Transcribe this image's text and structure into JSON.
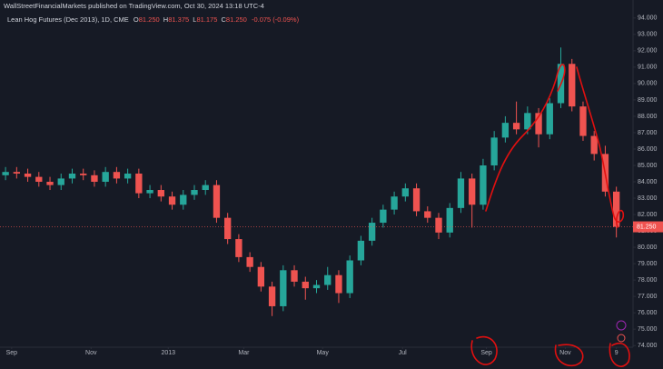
{
  "header": {
    "publisher": "WallStreetFinancialMarkets published on TradingView.com, Oct 30, 2024 13:18 UTC-4"
  },
  "chart_data": {
    "type": "candlestick",
    "title": "Lean Hog Futures (Dec 2013), 1D, CME",
    "ohlc_legend": [
      {
        "label": "O",
        "value": "81.250"
      },
      {
        "label": "H",
        "value": "81.375"
      },
      {
        "label": "L",
        "value": "81.175"
      },
      {
        "label": "C",
        "value": "81.250"
      }
    ],
    "change": "-0.075 (-0.09%)",
    "last_price_label": "81.250",
    "up_color": "#26a69a",
    "down_color": "#ef5350",
    "grid": false,
    "x": [
      0,
      2,
      4,
      6,
      8,
      10,
      12,
      14,
      16,
      18,
      20,
      22,
      24,
      26,
      28,
      30,
      32,
      34,
      36,
      38,
      40,
      42,
      44,
      46,
      48,
      50,
      52,
      54,
      56,
      58,
      60,
      62,
      64,
      66,
      68,
      70,
      72,
      74,
      76,
      78,
      80,
      82,
      84,
      86,
      88,
      90,
      92,
      94,
      96,
      98,
      100,
      102,
      104,
      106,
      108,
      110
    ],
    "open": [
      84.4,
      84.6,
      84.5,
      84.3,
      84.0,
      83.8,
      84.2,
      84.5,
      84.4,
      84.0,
      84.6,
      84.2,
      84.5,
      83.3,
      83.5,
      83.1,
      82.6,
      83.2,
      83.5,
      83.8,
      81.8,
      80.5,
      79.4,
      78.8,
      77.6,
      76.4,
      78.6,
      77.9,
      77.5,
      77.7,
      78.3,
      77.2,
      79.2,
      80.4,
      81.5,
      82.3,
      83.1,
      83.6,
      82.2,
      81.8,
      80.9,
      82.4,
      84.2,
      82.6,
      85.0,
      86.7,
      87.6,
      87.2,
      88.2,
      86.9,
      88.8,
      91.2,
      88.6,
      86.8,
      85.7,
      83.4
    ],
    "high": [
      84.9,
      84.9,
      84.8,
      84.6,
      84.3,
      84.5,
      84.8,
      84.8,
      84.7,
      84.9,
      84.9,
      84.8,
      84.8,
      83.8,
      83.8,
      83.4,
      83.5,
      83.8,
      84.1,
      84.1,
      82.1,
      80.8,
      79.7,
      79.1,
      77.9,
      78.9,
      78.9,
      78.2,
      78.0,
      78.8,
      78.6,
      79.5,
      80.7,
      81.8,
      82.6,
      83.4,
      83.9,
      83.9,
      82.5,
      82.1,
      82.7,
      84.6,
      84.5,
      85.4,
      87.1,
      88.0,
      88.9,
      88.6,
      88.5,
      89.1,
      92.2,
      91.5,
      88.9,
      87.1,
      86.2,
      83.7
    ],
    "low": [
      84.1,
      84.2,
      84.0,
      83.7,
      83.5,
      83.5,
      83.9,
      84.1,
      83.7,
      83.7,
      83.9,
      83.9,
      83.0,
      83.0,
      82.8,
      82.3,
      82.3,
      82.9,
      83.2,
      81.5,
      80.2,
      79.1,
      78.5,
      77.3,
      75.8,
      76.1,
      77.6,
      76.8,
      77.2,
      77.4,
      76.6,
      76.9,
      78.9,
      80.1,
      81.2,
      82.0,
      82.8,
      81.9,
      81.5,
      80.5,
      80.6,
      82.1,
      81.2,
      82.3,
      84.7,
      86.4,
      86.9,
      86.9,
      86.1,
      86.6,
      88.5,
      88.3,
      86.5,
      85.3,
      83.1,
      80.6
    ],
    "close": [
      84.6,
      84.5,
      84.3,
      84.0,
      83.8,
      84.2,
      84.5,
      84.4,
      84.0,
      84.6,
      84.2,
      84.5,
      83.3,
      83.5,
      83.1,
      82.6,
      83.2,
      83.5,
      83.8,
      81.8,
      80.5,
      79.4,
      78.8,
      77.6,
      76.4,
      78.6,
      77.9,
      77.5,
      77.7,
      78.3,
      77.2,
      79.2,
      80.4,
      81.5,
      82.3,
      83.1,
      83.6,
      82.2,
      81.8,
      80.9,
      82.4,
      84.2,
      82.6,
      85.0,
      86.7,
      87.6,
      87.2,
      88.2,
      86.9,
      88.8,
      91.2,
      88.6,
      86.8,
      85.7,
      83.4,
      81.25
    ],
    "xlim": [
      -1,
      113
    ],
    "xticks": [
      {
        "value": 1.1,
        "label": "Sep"
      },
      {
        "value": 15.4,
        "label": "Nov"
      },
      {
        "value": 29.3,
        "label": "2013"
      },
      {
        "value": 42.9,
        "label": "Mar"
      },
      {
        "value": 57.1,
        "label": "May"
      },
      {
        "value": 71.5,
        "label": "Jul"
      },
      {
        "value": 86.6,
        "label": "Sep"
      },
      {
        "value": 100.8,
        "label": "Nov"
      },
      {
        "value": 110,
        "label": "9"
      }
    ],
    "ylim": [
      73.9,
      95.1
    ],
    "yticks": [
      {
        "value": 74,
        "label": "74.000"
      },
      {
        "value": 75,
        "label": "75.000"
      },
      {
        "value": 76,
        "label": "76.000"
      },
      {
        "value": 77,
        "label": "77.000"
      },
      {
        "value": 78,
        "label": "78.000"
      },
      {
        "value": 79,
        "label": "79.000"
      },
      {
        "value": 80,
        "label": "80.000"
      },
      {
        "value": 81,
        "label": "81.000"
      },
      {
        "value": 82,
        "label": "82.000"
      },
      {
        "value": 83,
        "label": "83.000"
      },
      {
        "value": 84,
        "label": "84.000"
      },
      {
        "value": 85,
        "label": "85.000"
      },
      {
        "value": 86,
        "label": "86.000"
      },
      {
        "value": 87,
        "label": "87.000"
      },
      {
        "value": 88,
        "label": "88.000"
      },
      {
        "value": 89,
        "label": "89.000"
      },
      {
        "value": 90,
        "label": "90.000"
      },
      {
        "value": 91,
        "label": "91.000"
      },
      {
        "value": 92,
        "label": "92.000"
      },
      {
        "value": 93,
        "label": "93.000"
      },
      {
        "value": 94,
        "label": "94.000"
      }
    ]
  }
}
